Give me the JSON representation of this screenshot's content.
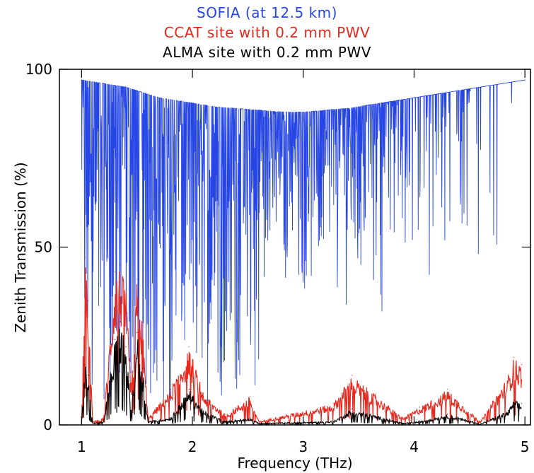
{
  "chart_data": {
    "type": "line",
    "title": "",
    "xlabel": "Frequency (THz)",
    "ylabel": "Zenith Transmission (%)",
    "xlim": [
      0.8,
      5.05
    ],
    "ylim": [
      0,
      100
    ],
    "x_ticks": [
      "1",
      "2",
      "3",
      "4",
      "5"
    ],
    "y_ticks": [
      "0",
      "50",
      "100"
    ],
    "legend_position": "top-center",
    "grid": false,
    "series": [
      {
        "name": "SOFIA (at 12.5 km)",
        "color": "#2646e6",
        "x": [
          1.0,
          1.1,
          1.2,
          1.3,
          1.4,
          1.5,
          1.6,
          1.7,
          1.8,
          1.9,
          2.0,
          2.2,
          2.4,
          2.6,
          2.8,
          3.0,
          3.2,
          3.4,
          3.6,
          3.8,
          4.0,
          4.2,
          4.4,
          4.6,
          4.8,
          5.0
        ],
        "y": [
          97,
          96.5,
          96,
          95.5,
          95,
          94,
          93,
          92,
          91.5,
          91,
          90.5,
          89.5,
          89,
          88.5,
          88,
          88,
          88.5,
          89,
          90,
          91,
          92,
          93,
          94,
          95,
          96,
          97
        ]
      },
      {
        "name": "CCAT site with 0.2 mm PWV",
        "color": "#e8261c",
        "x": [
          1.0,
          1.03,
          1.06,
          1.1,
          1.2,
          1.3,
          1.35,
          1.4,
          1.45,
          1.5,
          1.55,
          1.6,
          1.8,
          1.97,
          2.1,
          2.3,
          2.52,
          2.6,
          3.27,
          3.44,
          3.9,
          4.05,
          4.3,
          4.6,
          4.85,
          4.9,
          4.97
        ],
        "y": [
          2,
          47,
          35,
          1,
          2,
          43,
          45,
          38,
          10,
          41,
          28,
          2,
          10,
          22,
          9,
          3,
          8,
          1,
          6,
          14,
          2,
          5,
          10,
          1,
          14,
          19,
          17
        ]
      },
      {
        "name": "ALMA site with 0.2 mm PWV",
        "color": "#000000",
        "x": [
          1.0,
          1.03,
          1.06,
          1.1,
          1.2,
          1.3,
          1.35,
          1.4,
          1.45,
          1.5,
          1.55,
          1.6,
          1.8,
          1.97,
          2.1,
          2.3,
          2.52,
          2.6,
          3.27,
          3.44,
          3.9,
          4.05,
          4.3,
          4.6,
          4.85,
          4.9,
          4.97
        ],
        "y": [
          1,
          17,
          14,
          0.5,
          1,
          24,
          29,
          22,
          4,
          26,
          16,
          1,
          2,
          10,
          4,
          1,
          2,
          0.5,
          1,
          4.5,
          0.5,
          1,
          3,
          0.3,
          4,
          7,
          6
        ]
      }
    ]
  }
}
